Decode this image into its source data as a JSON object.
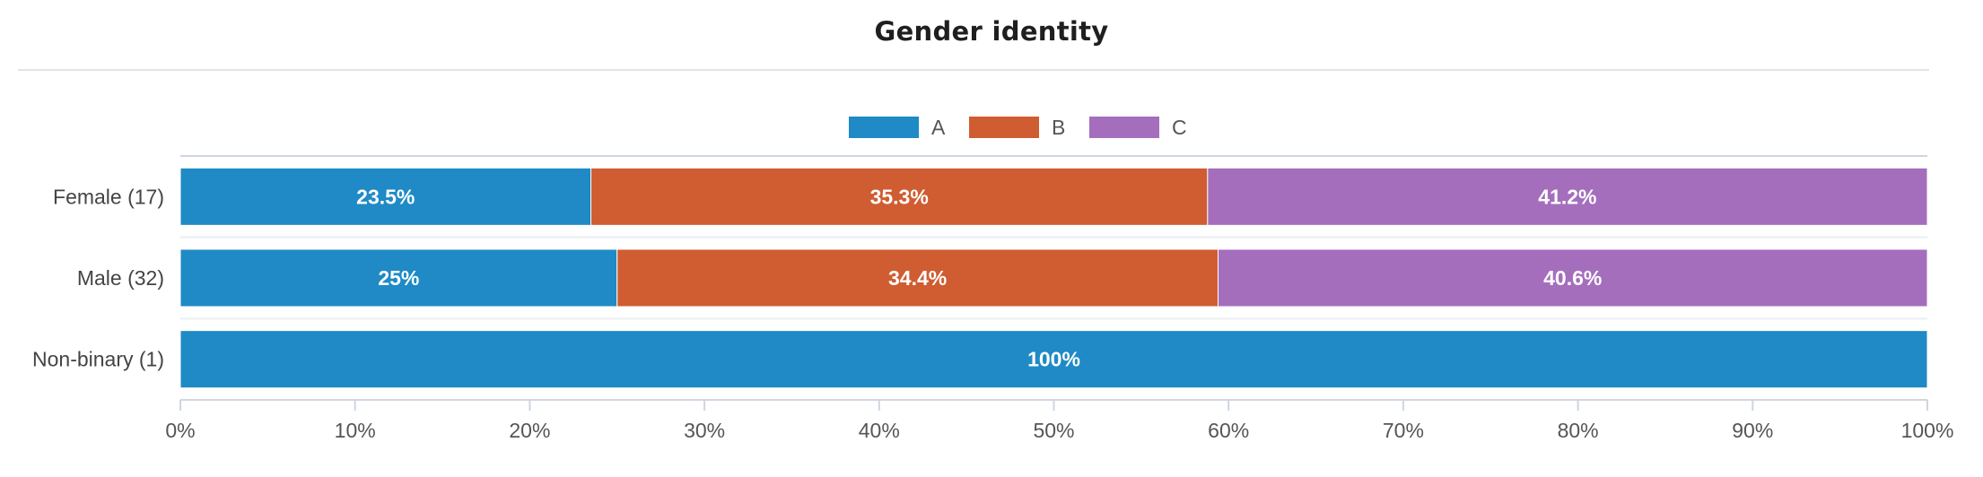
{
  "title": "Gender identity",
  "chart_data": {
    "type": "bar",
    "orientation": "horizontal",
    "stacked": true,
    "title": "Gender identity",
    "categories": [
      "Female (17)",
      "Male (32)",
      "Non-binary (1)"
    ],
    "series": [
      {
        "name": "A",
        "color": "#1f8ac5",
        "values": [
          23.5,
          25,
          100
        ]
      },
      {
        "name": "B",
        "color": "#cf5d31",
        "values": [
          35.3,
          34.4,
          0
        ]
      },
      {
        "name": "C",
        "color": "#a46ebd",
        "values": [
          41.2,
          40.6,
          0
        ]
      }
    ],
    "data_labels": [
      [
        "23.5%",
        "35.3%",
        "41.2%"
      ],
      [
        "25%",
        "34.4%",
        "40.6%"
      ],
      [
        "100%",
        null,
        null
      ]
    ],
    "xlim": [
      0,
      100
    ],
    "xticks": [
      "0%",
      "10%",
      "20%",
      "30%",
      "40%",
      "50%",
      "60%",
      "70%",
      "80%",
      "90%",
      "100%"
    ],
    "legend_position": "top-center",
    "grid": false
  }
}
